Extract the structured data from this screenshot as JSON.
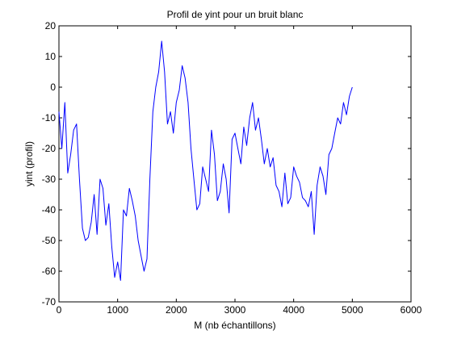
{
  "chart_data": {
    "type": "line",
    "title": "Profil de yint pour un bruit blanc",
    "xlabel": "M (nb échantillons)",
    "ylabel": "yint (profil)",
    "xlim": [
      0,
      6000
    ],
    "ylim": [
      -70,
      20
    ],
    "xticks": [
      0,
      1000,
      2000,
      3000,
      4000,
      5000,
      6000
    ],
    "yticks": [
      -70,
      -60,
      -50,
      -40,
      -30,
      -20,
      -10,
      0,
      10,
      20
    ],
    "grid": false,
    "line_color": "#0000ff",
    "series": [
      {
        "x": [
          0,
          50,
          100,
          150,
          200,
          250,
          300,
          350,
          400,
          450,
          500,
          550,
          600,
          650,
          700,
          750,
          800,
          850,
          900,
          950,
          1000,
          1050,
          1100,
          1150,
          1200,
          1250,
          1300,
          1350,
          1400,
          1450,
          1500,
          1550,
          1600,
          1650,
          1700,
          1750,
          1800,
          1850,
          1900,
          1950,
          2000,
          2050,
          2100,
          2150,
          2200,
          2250,
          2300,
          2350,
          2400,
          2450,
          2500,
          2550,
          2600,
          2650,
          2700,
          2750,
          2800,
          2850,
          2900,
          2950,
          3000,
          3050,
          3100,
          3150,
          3200,
          3250,
          3300,
          3350,
          3400,
          3450,
          3500,
          3550,
          3600,
          3650,
          3700,
          3750,
          3800,
          3850,
          3900,
          3950,
          4000,
          4050,
          4100,
          4150,
          4200,
          4250,
          4300,
          4350,
          4400,
          4450,
          4500,
          4550,
          4600,
          4650,
          4700,
          4750,
          4800,
          4850,
          4900,
          4950,
          5000
        ],
        "y": [
          -8,
          -20,
          -5,
          -28,
          -22,
          -14,
          -12,
          -30,
          -46,
          -50,
          -49,
          -44,
          -35,
          -48,
          -30,
          -33,
          -45,
          -38,
          -52,
          -62,
          -57,
          -63,
          -40,
          -42,
          -33,
          -37,
          -42,
          -50,
          -55,
          -60,
          -56,
          -30,
          -8,
          0,
          5,
          15,
          5,
          -12,
          -8,
          -15,
          -5,
          -1,
          7,
          3,
          -5,
          -20,
          -30,
          -40,
          -38,
          -26,
          -30,
          -34,
          -14,
          -22,
          -37,
          -34,
          -25,
          -30,
          -41,
          -17,
          -15,
          -20,
          -25,
          -13,
          -19,
          -10,
          -5,
          -14,
          -10,
          -17,
          -25,
          -20,
          -26,
          -23,
          -32,
          -34,
          -39,
          -28,
          -38,
          -36,
          -26,
          -29,
          -31,
          -36,
          -37,
          -39,
          -34,
          -48,
          -32,
          -26,
          -29,
          -35,
          -22,
          -20,
          -15,
          -10,
          -12,
          -5,
          -9,
          -3,
          0
        ]
      }
    ]
  }
}
